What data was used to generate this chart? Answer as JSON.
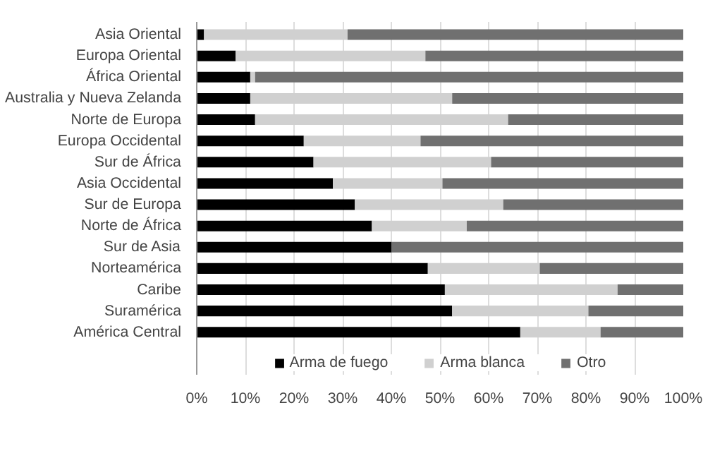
{
  "chart_data": {
    "type": "bar",
    "orientation": "horizontal",
    "stacked": true,
    "categories": [
      "Asia Oriental",
      "Europa Oriental",
      "África Oriental",
      "Australia y Nueva Zelanda",
      "Norte de Europa",
      "Europa Occidental",
      "Sur de África",
      "Asia Occidental",
      "Sur de Europa",
      "Norte de África",
      "Sur de Asia",
      "Norteamérica",
      "Caribe",
      "Suramérica",
      "América Central"
    ],
    "series": [
      {
        "name": "Arma de fuego",
        "color": "#000000",
        "values": [
          1.5,
          8,
          11,
          11,
          12,
          22,
          24,
          28,
          32.5,
          36,
          40,
          47.5,
          51,
          52.5,
          66.5
        ]
      },
      {
        "name": "Arma blanca",
        "color": "#d0d0d0",
        "values": [
          29.5,
          39,
          1,
          41.5,
          52,
          24,
          36.5,
          22.5,
          30.5,
          19.5,
          0,
          23,
          35.5,
          28,
          16.5
        ]
      },
      {
        "name": "Otro",
        "color": "#707070",
        "values": [
          69,
          53,
          88,
          47.5,
          36,
          54,
          39.5,
          49.5,
          37,
          44.5,
          60,
          29.5,
          13.5,
          19.5,
          17
        ]
      }
    ],
    "xlim": [
      0,
      100
    ],
    "xticks": [
      {
        "value": 0,
        "label": "0%"
      },
      {
        "value": 10,
        "label": "10%"
      },
      {
        "value": 20,
        "label": "20%"
      },
      {
        "value": 30,
        "label": "30%"
      },
      {
        "value": 40,
        "label": "40%"
      },
      {
        "value": 50,
        "label": "50%"
      },
      {
        "value": 60,
        "label": "60%"
      },
      {
        "value": 70,
        "label": "70%"
      },
      {
        "value": 80,
        "label": "80%"
      },
      {
        "value": 90,
        "label": "90%"
      },
      {
        "value": 100,
        "label": "100%"
      }
    ],
    "grid": "x",
    "legend": "bottom"
  }
}
